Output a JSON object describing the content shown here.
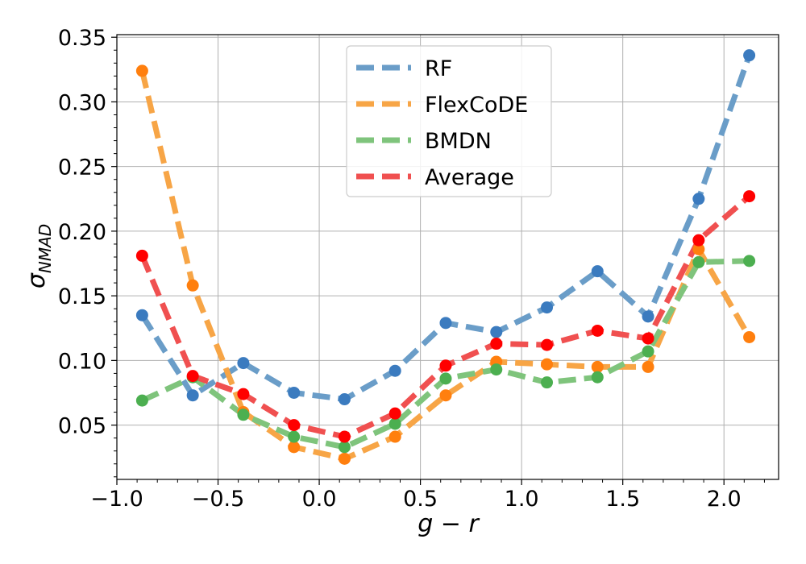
{
  "chart_data": {
    "type": "line",
    "title": "",
    "xlabel": "g − r",
    "ylabel_main": "σ",
    "ylabel_sub": "NMAD",
    "xlim": [
      -1.0,
      2.27
    ],
    "ylim": [
      0.008,
      0.352
    ],
    "grid": true,
    "legend_position": "upper-center",
    "x": [
      -0.875,
      -0.625,
      -0.375,
      -0.125,
      0.125,
      0.375,
      0.625,
      0.875,
      1.125,
      1.375,
      1.625,
      1.875,
      2.125
    ],
    "x_ticks": [
      -1.0,
      -0.5,
      0.0,
      0.5,
      1.0,
      1.5,
      2.0
    ],
    "x_tick_labels": [
      "−1.0",
      "−0.5",
      "0.0",
      "0.5",
      "1.0",
      "1.5",
      "2.0"
    ],
    "y_ticks": [
      0.05,
      0.1,
      0.15,
      0.2,
      0.25,
      0.3,
      0.35
    ],
    "y_tick_labels": [
      "0.05",
      "0.10",
      "0.15",
      "0.20",
      "0.25",
      "0.30",
      "0.35"
    ],
    "series": [
      {
        "name": "RF",
        "line_color": "#6a9dc8",
        "marker_color": "#3b7bbf",
        "values": [
          0.135,
          0.073,
          0.098,
          0.075,
          0.07,
          0.092,
          0.129,
          0.122,
          0.141,
          0.169,
          0.134,
          0.225,
          0.336
        ]
      },
      {
        "name": "FlexCoDE",
        "line_color": "#f7a546",
        "marker_color": "#ff7f0e",
        "values": [
          0.324,
          0.158,
          0.06,
          0.033,
          0.024,
          0.041,
          0.073,
          0.099,
          0.097,
          0.095,
          0.095,
          0.186,
          0.118
        ]
      },
      {
        "name": "BMDN",
        "line_color": "#7fc47c",
        "marker_color": "#4caf50",
        "values": [
          0.069,
          0.087,
          0.058,
          0.041,
          0.033,
          0.051,
          0.086,
          0.093,
          0.083,
          0.087,
          0.107,
          0.176,
          0.177
        ]
      },
      {
        "name": "Average",
        "line_color": "#f05050",
        "marker_color": "#ff0000",
        "values": [
          0.181,
          0.088,
          0.074,
          0.05,
          0.041,
          0.059,
          0.096,
          0.113,
          0.112,
          0.123,
          0.117,
          0.193,
          0.227
        ]
      }
    ]
  }
}
